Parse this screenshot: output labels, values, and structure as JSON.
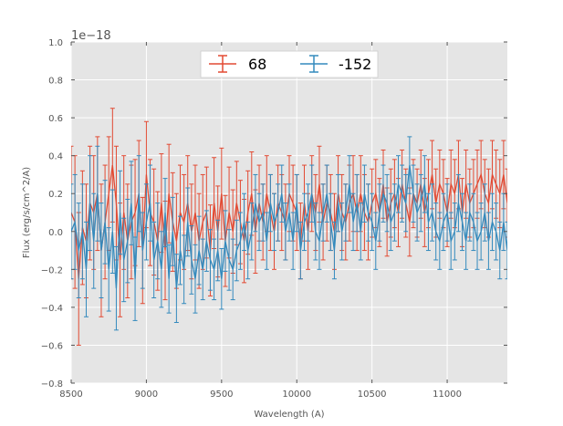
{
  "chart_data": {
    "type": "line",
    "title": "",
    "xlabel": "Wavelength (A)",
    "ylabel": "Flux (erg/s/cm^2/A)",
    "y_offset_label": "1e−18",
    "xlim": [
      8500,
      11400
    ],
    "ylim": [
      -0.8,
      1.0
    ],
    "x_ticks": [
      8500,
      9000,
      9500,
      10000,
      10500,
      11000
    ],
    "x_tick_labels": [
      "8500",
      "9000",
      "9500",
      "10000",
      "10500",
      "11000"
    ],
    "y_ticks": [
      -0.8,
      -0.6,
      -0.4,
      -0.2,
      0.0,
      0.2,
      0.4,
      0.6,
      0.8,
      1.0
    ],
    "y_tick_labels": [
      "−0.8",
      "−0.6",
      "−0.4",
      "−0.2",
      "0.0",
      "0.2",
      "0.4",
      "0.6",
      "0.8",
      "1.0"
    ],
    "grid": true,
    "legend_position": "top-center",
    "x_start": 8500,
    "x_step": 25,
    "series": [
      {
        "name": "68",
        "color": "#E24A33",
        "values": [
          0.1,
          0.05,
          -0.25,
          0.02,
          -0.05,
          0.15,
          0.1,
          0.2,
          -0.1,
          0.05,
          0.2,
          0.35,
          0.15,
          -0.15,
          0.1,
          -0.05,
          0.05,
          0.1,
          0.2,
          -0.1,
          0.3,
          0.1,
          0.05,
          -0.05,
          0.15,
          -0.1,
          0.2,
          0.05,
          -0.05,
          0.1,
          0.05,
          0.15,
          0.0,
          0.1,
          -0.05,
          0.05,
          0.1,
          -0.1,
          0.15,
          0.0,
          0.2,
          -0.05,
          0.1,
          0.0,
          0.15,
          0.05,
          -0.05,
          0.1,
          0.2,
          0.0,
          0.15,
          0.05,
          0.2,
          0.1,
          0.0,
          0.15,
          0.1,
          0.05,
          0.2,
          0.15,
          0.1,
          -0.05,
          0.15,
          0.0,
          0.2,
          0.1,
          0.25,
          0.05,
          0.15,
          0.1,
          0.0,
          0.2,
          0.1,
          0.05,
          0.15,
          0.2,
          0.1,
          0.2,
          0.1,
          0.05,
          0.15,
          0.2,
          0.1,
          0.25,
          0.05,
          0.15,
          0.2,
          0.1,
          0.25,
          0.15,
          0.05,
          0.2,
          0.15,
          0.25,
          0.1,
          0.2,
          0.3,
          0.15,
          0.25,
          0.2,
          0.1,
          0.25,
          0.2,
          0.3,
          0.1,
          0.25,
          0.15,
          0.2,
          0.25,
          0.3,
          0.2,
          0.15,
          0.3,
          0.25,
          0.2,
          0.3,
          0.15
        ],
        "errors": [
          0.35,
          0.35,
          0.35,
          0.3,
          0.3,
          0.3,
          0.3,
          0.3,
          0.35,
          0.3,
          0.3,
          0.3,
          0.3,
          0.3,
          0.3,
          0.3,
          0.3,
          0.28,
          0.28,
          0.28,
          0.28,
          0.28,
          0.28,
          0.26,
          0.26,
          0.26,
          0.26,
          0.26,
          0.25,
          0.25,
          0.25,
          0.25,
          0.25,
          0.25,
          0.25,
          0.25,
          0.24,
          0.24,
          0.24,
          0.24,
          0.24,
          0.24,
          0.24,
          0.22,
          0.22,
          0.22,
          0.22,
          0.22,
          0.22,
          0.22,
          0.2,
          0.2,
          0.2,
          0.2,
          0.2,
          0.2,
          0.2,
          0.2,
          0.2,
          0.2,
          0.2,
          0.2,
          0.2,
          0.2,
          0.2,
          0.2,
          0.2,
          0.2,
          0.2,
          0.2,
          0.2,
          0.2,
          0.2,
          0.2,
          0.2,
          0.2,
          0.2,
          0.2,
          0.2,
          0.2,
          0.18,
          0.18,
          0.18,
          0.18,
          0.18,
          0.18,
          0.18,
          0.18,
          0.18,
          0.18,
          0.18,
          0.18,
          0.18,
          0.18,
          0.18,
          0.18,
          0.18,
          0.18,
          0.18,
          0.18,
          0.18,
          0.18,
          0.18,
          0.18,
          0.18,
          0.18,
          0.18,
          0.18,
          0.18,
          0.18,
          0.18,
          0.18,
          0.18,
          0.18,
          0.18,
          0.18,
          0.18
        ]
      },
      {
        "name": "-152",
        "color": "#348ABD",
        "values": [
          0.0,
          0.05,
          -0.1,
          0.0,
          -0.2,
          0.15,
          -0.05,
          0.2,
          -0.1,
          0.05,
          -0.2,
          0.0,
          -0.3,
          0.1,
          -0.15,
          -0.05,
          0.15,
          -0.25,
          0.2,
          -0.1,
          0.05,
          0.15,
          -0.15,
          -0.05,
          -0.2,
          0.1,
          -0.25,
          0.0,
          -0.3,
          -0.1,
          -0.2,
          0.05,
          -0.15,
          -0.25,
          -0.1,
          -0.2,
          -0.05,
          -0.15,
          -0.2,
          -0.1,
          -0.25,
          -0.05,
          -0.15,
          -0.2,
          -0.1,
          -0.05,
          0.05,
          -0.1,
          0.0,
          0.15,
          0.05,
          0.1,
          -0.05,
          0.15,
          0.05,
          0.1,
          0.2,
          0.0,
          0.1,
          -0.05,
          0.15,
          -0.1,
          0.05,
          0.1,
          0.2,
          0.0,
          -0.05,
          0.1,
          0.2,
          0.05,
          -0.1,
          0.15,
          0.0,
          0.1,
          0.25,
          0.05,
          0.15,
          0.0,
          0.2,
          0.1,
          0.05,
          -0.05,
          0.1,
          0.2,
          0.15,
          0.05,
          0.1,
          0.25,
          0.2,
          0.15,
          0.35,
          0.2,
          0.1,
          0.15,
          0.25,
          0.05,
          0.1,
          0.0,
          -0.05,
          0.05,
          0.1,
          -0.05,
          0.0,
          0.15,
          0.05,
          -0.05,
          0.1,
          0.05,
          -0.05,
          0.0,
          0.1,
          -0.05,
          0.05,
          0.0,
          -0.1,
          0.05,
          -0.1
        ],
        "errors": [
          0.25,
          0.25,
          0.25,
          0.25,
          0.25,
          0.25,
          0.25,
          0.25,
          0.25,
          0.22,
          0.22,
          0.22,
          0.22,
          0.22,
          0.22,
          0.22,
          0.22,
          0.22,
          0.2,
          0.2,
          0.2,
          0.2,
          0.2,
          0.2,
          0.2,
          0.18,
          0.18,
          0.18,
          0.18,
          0.18,
          0.18,
          0.18,
          0.18,
          0.18,
          0.18,
          0.16,
          0.16,
          0.16,
          0.16,
          0.16,
          0.16,
          0.16,
          0.16,
          0.16,
          0.16,
          0.15,
          0.15,
          0.15,
          0.15,
          0.15,
          0.15,
          0.15,
          0.15,
          0.15,
          0.15,
          0.15,
          0.15,
          0.15,
          0.15,
          0.15,
          0.15,
          0.15,
          0.15,
          0.15,
          0.15,
          0.15,
          0.15,
          0.15,
          0.15,
          0.15,
          0.15,
          0.15,
          0.15,
          0.15,
          0.15,
          0.15,
          0.15,
          0.15,
          0.15,
          0.15,
          0.15,
          0.15,
          0.15,
          0.15,
          0.15,
          0.15,
          0.15,
          0.15,
          0.15,
          0.15,
          0.15,
          0.15,
          0.15,
          0.15,
          0.15,
          0.15,
          0.15,
          0.15,
          0.15,
          0.15,
          0.15,
          0.15,
          0.15,
          0.15,
          0.15,
          0.15,
          0.15,
          0.15,
          0.15,
          0.15,
          0.15,
          0.15,
          0.15,
          0.15,
          0.15,
          0.15,
          0.15
        ]
      }
    ]
  }
}
